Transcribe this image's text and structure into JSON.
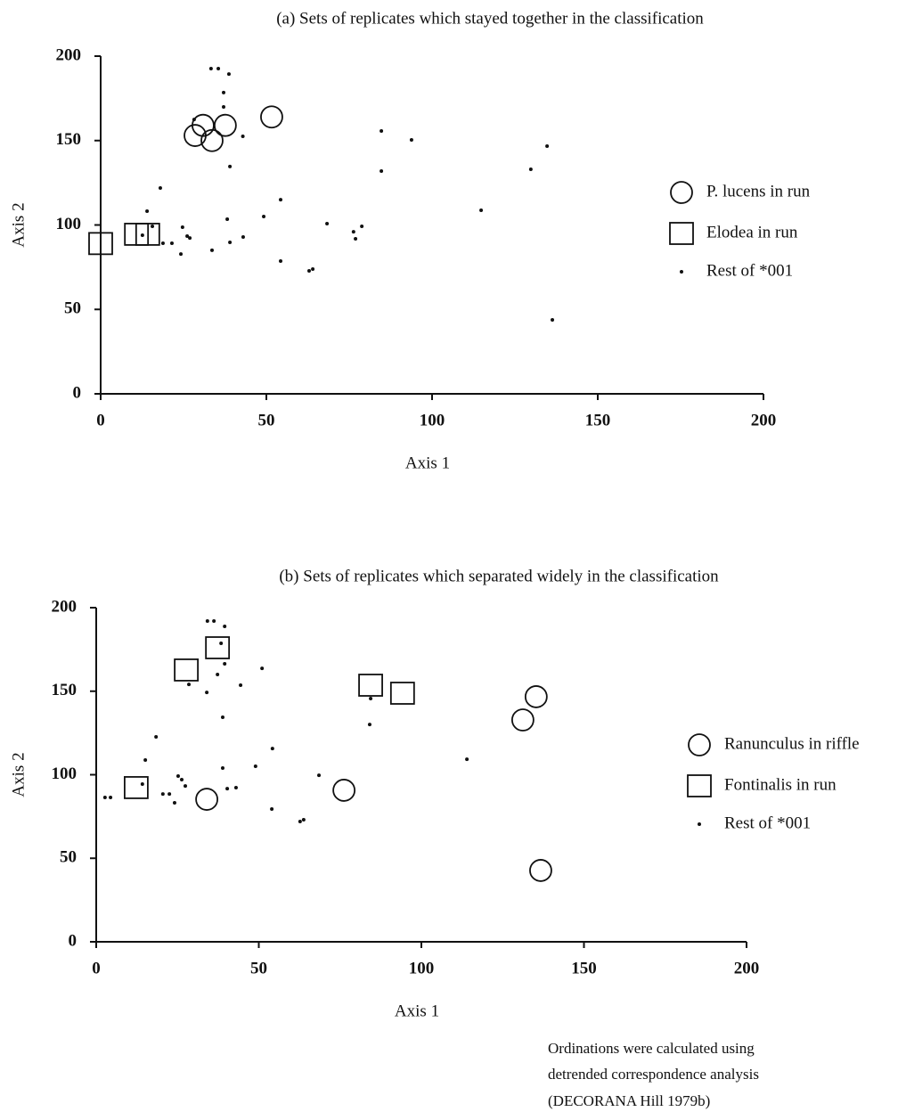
{
  "chart_data": [
    {
      "type": "scatter",
      "title": "(a)  Sets of replicates which stayed together in the classification",
      "x_label": "Axis 1",
      "y_label": "Axis 2",
      "xlim": [
        0,
        200
      ],
      "xticks": [
        0,
        50,
        100,
        150,
        200
      ],
      "ylim": [
        0,
        200
      ],
      "yticks": [
        0,
        50,
        100,
        150,
        200
      ],
      "series": [
        {
          "name": "P. lucens in run",
          "marker": "circle",
          "color": "#111111",
          "x": [
            28.5,
            30.9,
            33.6,
            37.6,
            51.6
          ],
          "y": [
            153,
            159,
            150,
            159,
            164
          ]
        },
        {
          "name": "Elodea in run",
          "marker": "square",
          "color": "#111111",
          "x": [
            0,
            10.8,
            14.2
          ],
          "y": [
            89,
            94.5,
            94.5
          ]
        },
        {
          "name": "Rest of *001",
          "marker": "dot",
          "color": "#111111",
          "x": [
            33.3,
            35.5,
            38.7,
            37.1,
            37.1,
            39,
            42.9,
            28.2,
            18,
            14,
            15.6,
            12.6,
            18.8,
            21.5,
            24.7,
            26.1,
            24.2,
            26.9,
            33.6,
            38.2,
            39,
            43,
            49.2,
            54.3,
            54.3,
            62.9,
            64,
            68.3,
            76.9,
            78.8,
            76.3,
            84.7,
            84.7,
            93.8,
            114.8,
            129.8,
            134.7,
            136.3
          ],
          "y": [
            192.6,
            192.6,
            189.4,
            178.4,
            169.9,
            134.6,
            152.5,
            162.5,
            121.9,
            108.2,
            99.2,
            93.9,
            89.2,
            89.2,
            98.7,
            93.4,
            82.8,
            92.3,
            85,
            103.4,
            89.7,
            92.9,
            105,
            115,
            78.6,
            72.8,
            73.9,
            100.8,
            91.8,
            99.2,
            96,
            155.7,
            131.9,
            150.4,
            108.7,
            133,
            146.7,
            43.8
          ]
        }
      ]
    },
    {
      "type": "scatter",
      "title": "(b)  Sets of replicates which separated widely in the classification",
      "x_label": "Axis 1",
      "y_label": "Axis 2",
      "xlim": [
        0,
        200
      ],
      "xticks": [
        0,
        50,
        100,
        150,
        200
      ],
      "ylim": [
        0,
        200
      ],
      "yticks": [
        0,
        50,
        100,
        150,
        200
      ],
      "series": [
        {
          "name": "Ranunculus in riffle",
          "marker": "circle",
          "color": "#111111",
          "x": [
            34,
            76.2,
            131.2,
            135.3,
            136.7
          ],
          "y": [
            85.3,
            90.7,
            132.8,
            146.7,
            42.7
          ]
        },
        {
          "name": "Fontinalis  in run",
          "marker": "square",
          "color": "#111111",
          "x": [
            12.3,
            27.7,
            37.3,
            84.4,
            94.2
          ],
          "y": [
            92.3,
            162.7,
            176,
            153.6,
            148.8
          ]
        },
        {
          "name": "Rest of *001",
          "marker": "dot",
          "color": "#111111",
          "x": [
            2.7,
            4.4,
            34.2,
            36.2,
            39.5,
            38.4,
            39.5,
            38.9,
            37.3,
            34,
            44.4,
            28.5,
            18.4,
            15.1,
            14.2,
            20.5,
            22.5,
            24.1,
            25.2,
            26.3,
            27.4,
            38.9,
            40.3,
            43,
            49,
            51,
            54.2,
            54,
            62.7,
            63.8,
            68.5,
            84.4,
            84.1,
            114
          ],
          "y": [
            86.4,
            86.4,
            192,
            192,
            188.8,
            178.7,
            166.4,
            134.4,
            160,
            149.3,
            153.6,
            154.1,
            122.7,
            108.8,
            94.4,
            88.5,
            88.5,
            83.2,
            99.2,
            97.1,
            93.3,
            104,
            91.7,
            92.3,
            105.1,
            163.7,
            115.7,
            79.5,
            72,
            73.1,
            99.7,
            145.6,
            130.1,
            109.3
          ]
        }
      ]
    }
  ],
  "note": [
    "Ordinations were calculated using",
    "detrended correspondence analysis",
    "(DECORANA Hill 1979b)"
  ]
}
